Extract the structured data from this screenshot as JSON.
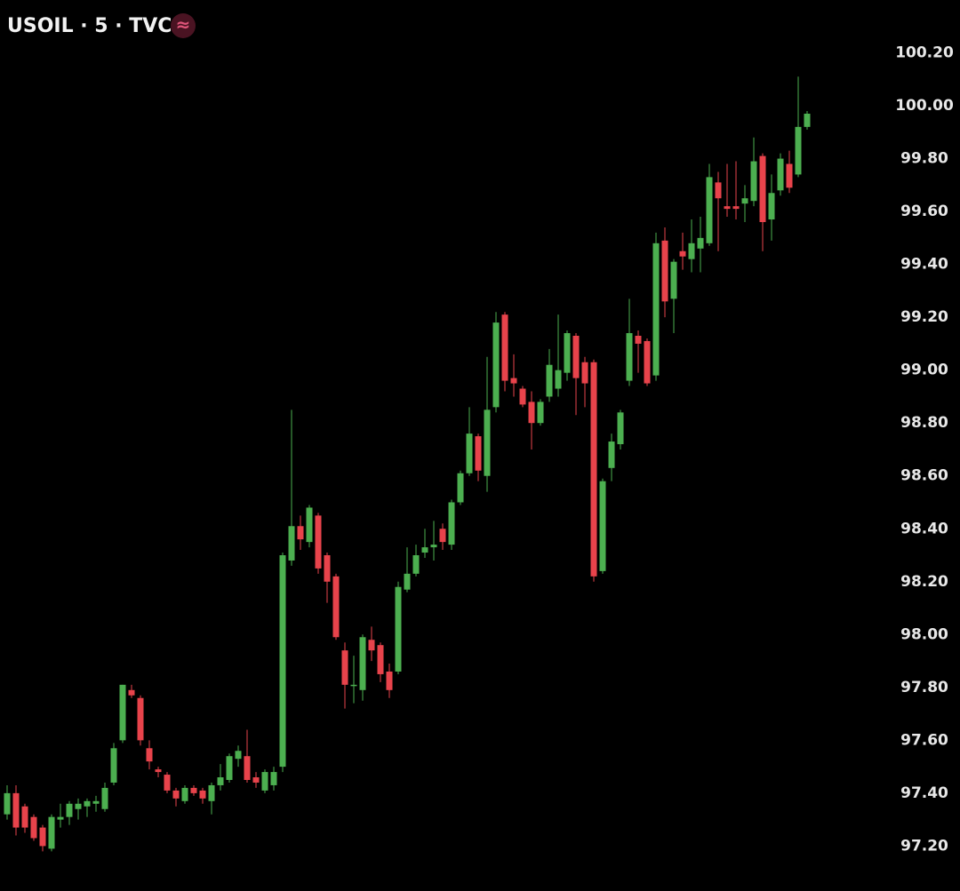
{
  "chart_data": {
    "type": "candlestick",
    "title": "USOIL · 5 · TVC",
    "status_icon": "≈",
    "up_color": "#4caf50",
    "down_color": "#e8434b",
    "grid": false,
    "ylim": [
      97.03,
      100.4
    ],
    "yticks": [
      {
        "value": 97.2,
        "label": "97.20"
      },
      {
        "value": 97.4,
        "label": "97.40"
      },
      {
        "value": 97.6,
        "label": "97.60"
      },
      {
        "value": 97.8,
        "label": "97.80"
      },
      {
        "value": 98.0,
        "label": "98.00"
      },
      {
        "value": 98.2,
        "label": "98.20"
      },
      {
        "value": 98.4,
        "label": "98.40"
      },
      {
        "value": 98.6,
        "label": "98.60"
      },
      {
        "value": 98.8,
        "label": "98.80"
      },
      {
        "value": 99.0,
        "label": "99.00"
      },
      {
        "value": 99.2,
        "label": "99.20"
      },
      {
        "value": 99.4,
        "label": "99.40"
      },
      {
        "value": 99.6,
        "label": "99.60"
      },
      {
        "value": 99.8,
        "label": "99.80"
      },
      {
        "value": 100.0,
        "label": "100.00"
      },
      {
        "value": 100.2,
        "label": "100.20"
      }
    ],
    "open": [
      97.32,
      97.4,
      97.35,
      97.31,
      97.27,
      97.19,
      97.3,
      97.31,
      97.34,
      97.35,
      97.36,
      97.34,
      97.44,
      97.6,
      97.79,
      97.76,
      97.57,
      97.49,
      97.47,
      97.41,
      97.37,
      97.42,
      97.41,
      97.37,
      97.43,
      97.45,
      97.53,
      97.54,
      97.46,
      97.41,
      97.43,
      97.5,
      98.28,
      98.41,
      98.35,
      98.45,
      98.3,
      98.22,
      97.94,
      97.81,
      97.79,
      97.98,
      97.96,
      97.86,
      97.86,
      98.17,
      98.23,
      98.31,
      98.33,
      98.4,
      98.34,
      98.5,
      98.61,
      98.75,
      98.6,
      98.86,
      99.21,
      98.97,
      98.93,
      98.88,
      98.8,
      98.9,
      98.93,
      98.99,
      99.13,
      99.03,
      99.03,
      98.24,
      98.63,
      98.72,
      98.96,
      99.13,
      99.11,
      98.98,
      99.49,
      99.27,
      99.45,
      99.42,
      99.46,
      99.48,
      99.71,
      99.62,
      99.62,
      99.63,
      99.64,
      99.81,
      99.57,
      99.68,
      99.78,
      99.74,
      99.92
    ],
    "high": [
      97.43,
      97.43,
      97.36,
      97.32,
      97.28,
      97.32,
      97.36,
      97.37,
      97.38,
      97.38,
      97.39,
      97.44,
      97.59,
      97.81,
      97.81,
      97.77,
      97.6,
      97.5,
      97.48,
      97.42,
      97.43,
      97.43,
      97.42,
      97.44,
      97.51,
      97.55,
      97.58,
      97.64,
      97.48,
      97.49,
      97.5,
      98.31,
      98.85,
      98.45,
      98.49,
      98.46,
      98.31,
      98.23,
      97.97,
      97.92,
      98.0,
      98.03,
      97.97,
      97.89,
      98.2,
      98.33,
      98.34,
      98.4,
      98.43,
      98.42,
      98.51,
      98.62,
      98.86,
      98.76,
      99.05,
      99.22,
      99.22,
      99.06,
      98.94,
      98.92,
      98.89,
      99.08,
      99.21,
      99.15,
      99.14,
      99.05,
      99.04,
      98.59,
      98.76,
      98.85,
      99.27,
      99.15,
      99.12,
      99.52,
      99.54,
      99.42,
      99.52,
      99.57,
      99.58,
      99.78,
      99.75,
      99.78,
      99.79,
      99.7,
      99.88,
      99.82,
      99.74,
      99.82,
      99.83,
      100.11,
      99.98
    ],
    "low": [
      97.3,
      97.24,
      97.25,
      97.22,
      97.18,
      97.18,
      97.27,
      97.28,
      97.3,
      97.31,
      97.33,
      97.33,
      97.43,
      97.59,
      97.76,
      97.58,
      97.49,
      97.46,
      97.4,
      97.35,
      97.36,
      97.39,
      97.36,
      97.32,
      97.41,
      97.44,
      97.5,
      97.44,
      97.42,
      97.4,
      97.41,
      97.48,
      98.26,
      98.32,
      98.33,
      98.23,
      98.12,
      97.98,
      97.72,
      97.74,
      97.75,
      97.9,
      97.82,
      97.76,
      97.85,
      98.16,
      98.22,
      98.29,
      98.28,
      98.32,
      98.32,
      98.49,
      98.6,
      98.58,
      98.54,
      98.84,
      98.92,
      98.9,
      98.86,
      98.7,
      98.79,
      98.88,
      98.9,
      98.96,
      98.83,
      98.86,
      98.2,
      98.23,
      98.58,
      98.7,
      98.94,
      98.99,
      98.94,
      98.96,
      99.2,
      99.14,
      99.38,
      99.37,
      99.37,
      99.47,
      99.45,
      99.58,
      99.57,
      99.56,
      99.62,
      99.45,
      99.49,
      99.66,
      99.67,
      99.73,
      99.91
    ],
    "close": [
      97.4,
      97.27,
      97.27,
      97.23,
      97.2,
      97.31,
      97.31,
      97.36,
      97.36,
      97.37,
      97.37,
      97.42,
      97.57,
      97.81,
      97.77,
      97.6,
      97.52,
      97.48,
      97.41,
      97.38,
      97.42,
      97.4,
      97.38,
      97.43,
      97.46,
      97.54,
      97.56,
      97.45,
      97.44,
      97.48,
      97.48,
      98.3,
      98.41,
      98.36,
      98.48,
      98.25,
      98.2,
      97.99,
      97.81,
      97.81,
      97.99,
      97.94,
      97.85,
      97.79,
      98.18,
      98.23,
      98.3,
      98.33,
      98.34,
      98.35,
      98.5,
      98.61,
      98.76,
      98.62,
      98.85,
      99.18,
      98.96,
      98.95,
      98.87,
      98.8,
      98.88,
      99.02,
      99.0,
      99.14,
      98.97,
      98.95,
      98.22,
      98.58,
      98.73,
      98.84,
      99.14,
      99.1,
      98.95,
      99.48,
      99.26,
      99.41,
      99.43,
      99.48,
      99.5,
      99.73,
      99.65,
      99.61,
      99.61,
      99.65,
      99.79,
      99.56,
      99.67,
      99.8,
      99.69,
      99.92,
      99.97
    ]
  }
}
